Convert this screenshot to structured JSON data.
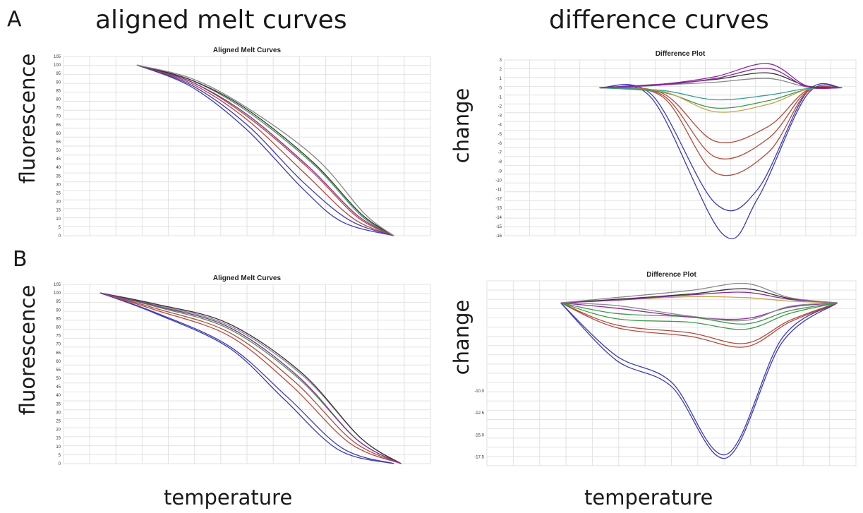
{
  "labels": {
    "panel_a": "A",
    "panel_b": "B",
    "col_left": "aligned melt curves",
    "col_right": "difference curves",
    "ylabel_left": "fluorescence",
    "ylabel_right": "change",
    "xlabel": "temperature"
  },
  "colors": {
    "grid": "#e2e2e2",
    "blue": "#3b3bb5",
    "red": "#b24a3c",
    "green": "#3f9a4a",
    "purple": "#8a2a9e",
    "gray": "#888888",
    "tan": "#c9a24a",
    "teal": "#3a9aa0",
    "dark": "#333333"
  },
  "chart_data": [
    {
      "panel": "A",
      "type": "line",
      "title": "Aligned Melt Curves",
      "ylim": [
        0,
        105
      ],
      "yticks": [
        "105",
        "100",
        "95",
        "90",
        "85",
        "80",
        "75",
        "70",
        "65",
        "60",
        "55",
        "50",
        "45",
        "40",
        "35",
        "30",
        "25",
        "20",
        "15",
        "10",
        "5",
        "0"
      ],
      "xlim": [
        0,
        1
      ],
      "grid": true,
      "series": [
        {
          "color": "blue",
          "x": [
            0.2,
            0.35,
            0.5,
            0.65,
            0.76,
            0.9
          ],
          "y": [
            100,
            87,
            62,
            28,
            8,
            0
          ]
        },
        {
          "color": "blue",
          "x": [
            0.2,
            0.35,
            0.5,
            0.65,
            0.78,
            0.9
          ],
          "y": [
            100,
            88,
            65,
            32,
            9,
            0
          ]
        },
        {
          "color": "red",
          "x": [
            0.2,
            0.35,
            0.5,
            0.66,
            0.79,
            0.9
          ],
          "y": [
            100,
            89,
            68,
            36,
            10,
            0
          ]
        },
        {
          "color": "red",
          "x": [
            0.2,
            0.35,
            0.5,
            0.67,
            0.8,
            0.9
          ],
          "y": [
            100,
            90,
            70,
            39,
            11,
            0
          ]
        },
        {
          "color": "purple",
          "x": [
            0.2,
            0.35,
            0.5,
            0.67,
            0.8,
            0.9
          ],
          "y": [
            100,
            90,
            71,
            40,
            12,
            0
          ]
        },
        {
          "color": "green",
          "x": [
            0.2,
            0.35,
            0.5,
            0.68,
            0.81,
            0.9
          ],
          "y": [
            100,
            91,
            73,
            42,
            12,
            0
          ]
        },
        {
          "color": "dark",
          "x": [
            0.2,
            0.35,
            0.5,
            0.68,
            0.81,
            0.9
          ],
          "y": [
            100,
            91,
            74,
            43,
            13,
            0
          ]
        },
        {
          "color": "gray",
          "x": [
            0.2,
            0.35,
            0.5,
            0.69,
            0.82,
            0.9
          ],
          "y": [
            100,
            92,
            75,
            45,
            13,
            0
          ]
        }
      ]
    },
    {
      "panel": "A",
      "type": "line",
      "title": "Difference Plot",
      "ylim": [
        -16,
        3
      ],
      "yticks": [
        "3",
        "2",
        "1",
        "0",
        "-1",
        "-2",
        "-3",
        "-4",
        "-5",
        "-6",
        "-7",
        "-8",
        "-9",
        "-10",
        "-11",
        "-12",
        "-13",
        "-14",
        "-15",
        "-16"
      ],
      "xlim": [
        0,
        1
      ],
      "grid": true,
      "series": [
        {
          "color": "blue",
          "x": [
            0.27,
            0.42,
            0.6,
            0.72,
            0.86,
            0.96
          ],
          "y": [
            0,
            -0.8,
            -12.5,
            -11,
            -0.5,
            0
          ]
        },
        {
          "color": "blue",
          "x": [
            0.27,
            0.42,
            0.62,
            0.72,
            0.86,
            0.96
          ],
          "y": [
            0,
            -1.2,
            -15.8,
            -12,
            -0.8,
            0
          ]
        },
        {
          "color": "red",
          "x": [
            0.27,
            0.45,
            0.6,
            0.75,
            0.86,
            0.96
          ],
          "y": [
            0,
            -1,
            -9.2,
            -7,
            -0.5,
            0
          ]
        },
        {
          "color": "red",
          "x": [
            0.27,
            0.45,
            0.6,
            0.75,
            0.86,
            0.96
          ],
          "y": [
            0,
            -0.8,
            -7.5,
            -5.5,
            -0.4,
            0
          ]
        },
        {
          "color": "red",
          "x": [
            0.27,
            0.45,
            0.6,
            0.75,
            0.86,
            0.96
          ],
          "y": [
            0,
            -0.6,
            -5.8,
            -4.2,
            -0.3,
            0
          ]
        },
        {
          "color": "green",
          "x": [
            0.27,
            0.45,
            0.6,
            0.75,
            0.86,
            0.96
          ],
          "y": [
            0,
            -0.5,
            -2.2,
            -1.4,
            -0.2,
            0
          ]
        },
        {
          "color": "tan",
          "x": [
            0.27,
            0.45,
            0.6,
            0.75,
            0.86,
            0.96
          ],
          "y": [
            0,
            -0.4,
            -2.6,
            -1.8,
            -0.2,
            0
          ]
        },
        {
          "color": "teal",
          "x": [
            0.27,
            0.45,
            0.6,
            0.75,
            0.86,
            0.96
          ],
          "y": [
            0,
            -0.3,
            -1.3,
            -0.8,
            -0.1,
            0
          ]
        },
        {
          "color": "gray",
          "x": [
            0.27,
            0.45,
            0.6,
            0.75,
            0.86,
            0.96
          ],
          "y": [
            0,
            0.3,
            0.6,
            1,
            0.1,
            0
          ]
        },
        {
          "color": "dark",
          "x": [
            0.27,
            0.45,
            0.6,
            0.75,
            0.86,
            0.96
          ],
          "y": [
            0,
            0.4,
            0.9,
            1.6,
            0.2,
            0
          ]
        },
        {
          "color": "purple",
          "x": [
            0.27,
            0.45,
            0.6,
            0.75,
            0.86,
            0.96
          ],
          "y": [
            0,
            0.4,
            1.2,
            2.6,
            0.2,
            0
          ]
        },
        {
          "color": "purple",
          "x": [
            0.27,
            0.45,
            0.6,
            0.75,
            0.86,
            0.96
          ],
          "y": [
            0,
            0.3,
            1,
            2.1,
            0.1,
            0
          ]
        }
      ]
    },
    {
      "panel": "B",
      "type": "line",
      "title": "Aligned Melt Curves",
      "ylim": [
        0,
        105
      ],
      "yticks": [
        "105",
        "100",
        "95",
        "90",
        "85",
        "80",
        "75",
        "70",
        "65",
        "60",
        "55",
        "50",
        "45",
        "40",
        "35",
        "30",
        "25",
        "20",
        "15",
        "10",
        "5",
        "0"
      ],
      "xlim": [
        0,
        1
      ],
      "grid": true,
      "series": [
        {
          "color": "blue",
          "x": [
            0.1,
            0.25,
            0.45,
            0.6,
            0.75,
            0.9
          ],
          "y": [
            100,
            88,
            68,
            38,
            8,
            0
          ]
        },
        {
          "color": "blue",
          "x": [
            0.1,
            0.25,
            0.45,
            0.61,
            0.76,
            0.9
          ],
          "y": [
            100,
            88.5,
            69,
            39,
            9,
            0
          ]
        },
        {
          "color": "red",
          "x": [
            0.1,
            0.25,
            0.45,
            0.62,
            0.78,
            0.92
          ],
          "y": [
            100,
            90,
            75,
            46,
            12,
            0
          ]
        },
        {
          "color": "red",
          "x": [
            0.1,
            0.25,
            0.45,
            0.63,
            0.79,
            0.92
          ],
          "y": [
            100,
            91,
            77,
            48,
            13,
            0
          ]
        },
        {
          "color": "green",
          "x": [
            0.1,
            0.25,
            0.45,
            0.64,
            0.8,
            0.92
          ],
          "y": [
            100,
            92,
            79,
            50,
            14,
            0
          ]
        },
        {
          "color": "gray",
          "x": [
            0.1,
            0.25,
            0.45,
            0.65,
            0.81,
            0.92
          ],
          "y": [
            100,
            93,
            81,
            52,
            15,
            0
          ]
        },
        {
          "color": "dark",
          "x": [
            0.1,
            0.25,
            0.45,
            0.65,
            0.81,
            0.92
          ],
          "y": [
            100,
            93.5,
            82,
            53,
            15,
            0
          ]
        },
        {
          "color": "purple",
          "x": [
            0.1,
            0.25,
            0.45,
            0.64,
            0.8,
            0.92
          ],
          "y": [
            100,
            92.5,
            80,
            51,
            14,
            0
          ]
        }
      ]
    },
    {
      "panel": "B",
      "type": "line",
      "title": "Difference Plot",
      "ylim": [
        -18.5,
        2.5
      ],
      "yticks": [
        "-10.0",
        "-12.5",
        "-15.0",
        "-17.5"
      ],
      "xlim": [
        0,
        1
      ],
      "grid": true,
      "series": [
        {
          "color": "blue",
          "x": [
            0.2,
            0.35,
            0.5,
            0.65,
            0.8,
            0.95
          ],
          "y": [
            0,
            -6,
            -9,
            -17.2,
            -4,
            0
          ]
        },
        {
          "color": "blue",
          "x": [
            0.2,
            0.35,
            0.5,
            0.65,
            0.8,
            0.95
          ],
          "y": [
            0,
            -6.5,
            -9.5,
            -17.6,
            -4.5,
            0
          ]
        },
        {
          "color": "red",
          "x": [
            0.2,
            0.35,
            0.55,
            0.7,
            0.82,
            0.95
          ],
          "y": [
            0,
            -2.8,
            -3.8,
            -5,
            -2.2,
            0
          ]
        },
        {
          "color": "red",
          "x": [
            0.2,
            0.35,
            0.55,
            0.7,
            0.82,
            0.95
          ],
          "y": [
            0,
            -2.5,
            -3.4,
            -4.6,
            -2,
            0
          ]
        },
        {
          "color": "green",
          "x": [
            0.2,
            0.35,
            0.55,
            0.7,
            0.82,
            0.95
          ],
          "y": [
            0,
            -1.8,
            -2.2,
            -3,
            -1.2,
            0
          ]
        },
        {
          "color": "green",
          "x": [
            0.2,
            0.35,
            0.55,
            0.7,
            0.82,
            0.95
          ],
          "y": [
            0,
            -1.2,
            -1.6,
            -2.4,
            -0.9,
            0
          ]
        },
        {
          "color": "purple",
          "x": [
            0.2,
            0.35,
            0.55,
            0.7,
            0.82,
            0.95
          ],
          "y": [
            0,
            -0.6,
            -1.6,
            -1.8,
            -0.5,
            0
          ]
        },
        {
          "color": "gray",
          "x": [
            0.2,
            0.35,
            0.55,
            0.7,
            0.82,
            0.95
          ],
          "y": [
            0,
            -0.3,
            -1.5,
            -2,
            -0.4,
            0
          ]
        },
        {
          "color": "tan",
          "x": [
            0.2,
            0.35,
            0.55,
            0.7,
            0.82,
            0.95
          ],
          "y": [
            0,
            0.3,
            0.7,
            0.6,
            0.2,
            0
          ]
        },
        {
          "color": "dark",
          "x": [
            0.2,
            0.35,
            0.55,
            0.7,
            0.82,
            0.95
          ],
          "y": [
            0,
            0.4,
            1,
            1.6,
            0.5,
            0
          ]
        },
        {
          "color": "purple",
          "x": [
            0.2,
            0.35,
            0.55,
            0.7,
            0.82,
            0.95
          ],
          "y": [
            0,
            0.3,
            0.9,
            1.2,
            0.4,
            0
          ]
        },
        {
          "color": "gray",
          "x": [
            0.2,
            0.35,
            0.55,
            0.7,
            0.82,
            0.95
          ],
          "y": [
            0,
            0.6,
            1.4,
            2.2,
            0.6,
            0
          ]
        }
      ]
    }
  ]
}
